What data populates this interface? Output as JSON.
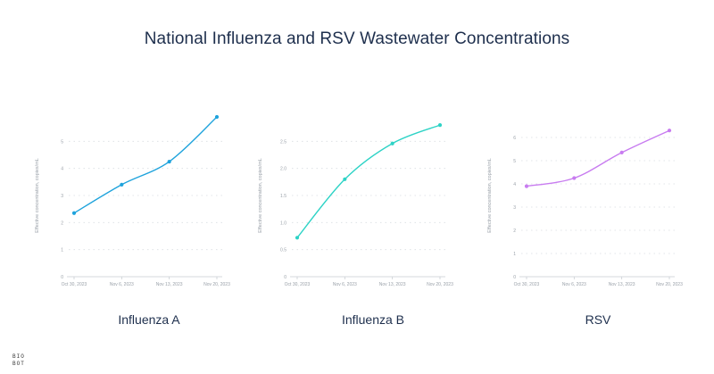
{
  "title": "National Influenza and RSV Wastewater Concentrations",
  "logo": {
    "line1": "BIO",
    "line2": "BOT"
  },
  "chart_data": [
    {
      "type": "line",
      "name": "Influenza A",
      "color": "#1fa3dc",
      "ylabel": "Effective concentration, copies/mL",
      "categories": [
        "Oct 30, 2023",
        "Nov 6, 2023",
        "Nov 13, 2023",
        "Nov 20, 2023"
      ],
      "values": [
        2.35,
        3.4,
        4.25,
        5.9
      ],
      "yticks": [
        0,
        1,
        2,
        3,
        4,
        5
      ],
      "ylim": [
        0,
        6
      ]
    },
    {
      "type": "line",
      "name": "Influenza B",
      "color": "#2ed3c6",
      "ylabel": "Effective concentration, copies/mL",
      "categories": [
        "Oct 30, 2023",
        "Nov 6, 2023",
        "Nov 13, 2023",
        "Nov 20, 2023"
      ],
      "values": [
        0.72,
        1.8,
        2.46,
        2.8
      ],
      "yticks": [
        0,
        0.5,
        1.0,
        1.5,
        2.0,
        2.5
      ],
      "ytick_labels": [
        "0",
        "0.5",
        "1.0",
        "1.5",
        "2.0",
        "2.5"
      ],
      "ylim": [
        0,
        3
      ]
    },
    {
      "type": "line",
      "name": "RSV",
      "color": "#c87cf0",
      "ylabel": "Effective concentration, copies/mL",
      "categories": [
        "Oct 30, 2023",
        "Nov 6, 2023",
        "Nov 13, 2023",
        "Nov 20, 2023"
      ],
      "values": [
        3.9,
        4.25,
        5.35,
        6.3
      ],
      "yticks": [
        0,
        1,
        2,
        3,
        4,
        5,
        6
      ],
      "ylim": [
        0,
        7
      ]
    }
  ]
}
